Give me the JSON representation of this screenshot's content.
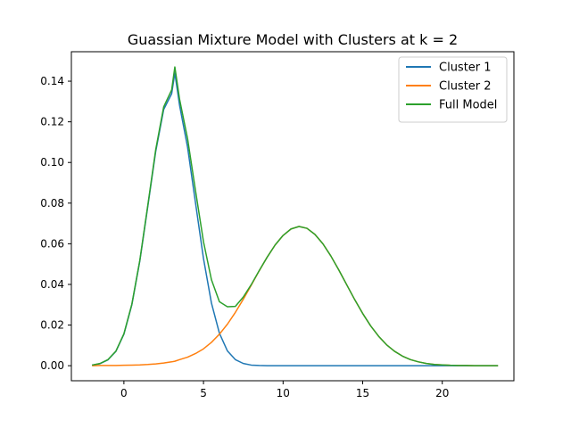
{
  "chart_data": {
    "type": "line",
    "title": "Guassian Mixture Model with Clusters at k = 2",
    "xlabel": "",
    "ylabel": "",
    "xlim": [
      -3.3,
      24.5
    ],
    "ylim": [
      -0.0074,
      0.1545
    ],
    "xticks": [
      0,
      5,
      10,
      15,
      20
    ],
    "xtick_labels": [
      "0",
      "5",
      "10",
      "15",
      "20"
    ],
    "yticks": [
      0.0,
      0.02,
      0.04,
      0.06,
      0.08,
      0.1,
      0.12,
      0.14
    ],
    "ytick_labels": [
      "0.00",
      "0.02",
      "0.04",
      "0.06",
      "0.08",
      "0.10",
      "0.12",
      "0.14"
    ],
    "grid": false,
    "legend_position": "top-right",
    "x": [
      -2.0,
      -1.5,
      -1.0,
      -0.5,
      0.0,
      0.5,
      1.0,
      1.5,
      2.0,
      2.5,
      3.0,
      3.2,
      3.5,
      4.0,
      4.5,
      5.0,
      5.5,
      6.0,
      6.5,
      7.0,
      7.5,
      8.0,
      8.5,
      9.0,
      9.5,
      10.0,
      10.5,
      11.0,
      11.5,
      12.0,
      12.5,
      13.0,
      13.5,
      14.0,
      14.5,
      15.0,
      15.5,
      16.0,
      16.5,
      17.0,
      17.5,
      18.0,
      18.5,
      19.0,
      19.5,
      20.0,
      20.5,
      21.0,
      21.5,
      22.0,
      22.5,
      23.0,
      23.5
    ],
    "series": [
      {
        "name": "Cluster 1",
        "color": "#1f77b4",
        "values": [
          0.0003,
          0.001,
          0.0029,
          0.0071,
          0.0155,
          0.03,
          0.0515,
          0.0783,
          0.1055,
          0.1261,
          0.1338,
          0.144,
          0.128,
          0.1075,
          0.08,
          0.0527,
          0.0308,
          0.016,
          0.0073,
          0.003,
          0.0011,
          0.0003,
          0.0001,
          0.0,
          0.0,
          0.0,
          0.0,
          0.0,
          0.0,
          0.0,
          0.0,
          0.0,
          0.0,
          0.0,
          0.0,
          0.0,
          0.0,
          0.0,
          0.0,
          0.0,
          0.0,
          0.0,
          0.0,
          0.0,
          0.0,
          0.0,
          0.0,
          0.0,
          0.0,
          0.0,
          0.0,
          0.0,
          0.0
        ]
      },
      {
        "name": "Cluster 2",
        "color": "#ff7f0e",
        "values": [
          0.0,
          0.0001,
          0.0001,
          0.0001,
          0.0002,
          0.0003,
          0.0004,
          0.0006,
          0.0009,
          0.0013,
          0.0019,
          0.0022,
          0.003,
          0.0042,
          0.006,
          0.0083,
          0.0115,
          0.0155,
          0.0204,
          0.0262,
          0.0327,
          0.0396,
          0.0467,
          0.0534,
          0.0594,
          0.0641,
          0.0673,
          0.0685,
          0.0676,
          0.0646,
          0.06,
          0.054,
          0.0471,
          0.0398,
          0.0325,
          0.0257,
          0.0196,
          0.0145,
          0.0103,
          0.0071,
          0.0047,
          0.003,
          0.0019,
          0.0011,
          0.0006,
          0.0004,
          0.0002,
          0.0001,
          0.0001,
          0.0,
          0.0,
          0.0,
          0.0
        ]
      },
      {
        "name": "Full Model",
        "color": "#2ca02c",
        "values": [
          0.0003,
          0.0011,
          0.003,
          0.0072,
          0.0157,
          0.0303,
          0.0519,
          0.0789,
          0.1064,
          0.1274,
          0.1357,
          0.147,
          0.131,
          0.1117,
          0.086,
          0.061,
          0.0423,
          0.0315,
          0.029,
          0.0292,
          0.0338,
          0.0399,
          0.0468,
          0.0534,
          0.0594,
          0.0641,
          0.0673,
          0.0685,
          0.0676,
          0.0646,
          0.06,
          0.054,
          0.0471,
          0.0398,
          0.0325,
          0.0257,
          0.0196,
          0.0145,
          0.0103,
          0.0071,
          0.0047,
          0.003,
          0.0019,
          0.0011,
          0.0006,
          0.0004,
          0.0002,
          0.0001,
          0.0001,
          0.0,
          0.0,
          0.0,
          0.0
        ]
      }
    ]
  }
}
